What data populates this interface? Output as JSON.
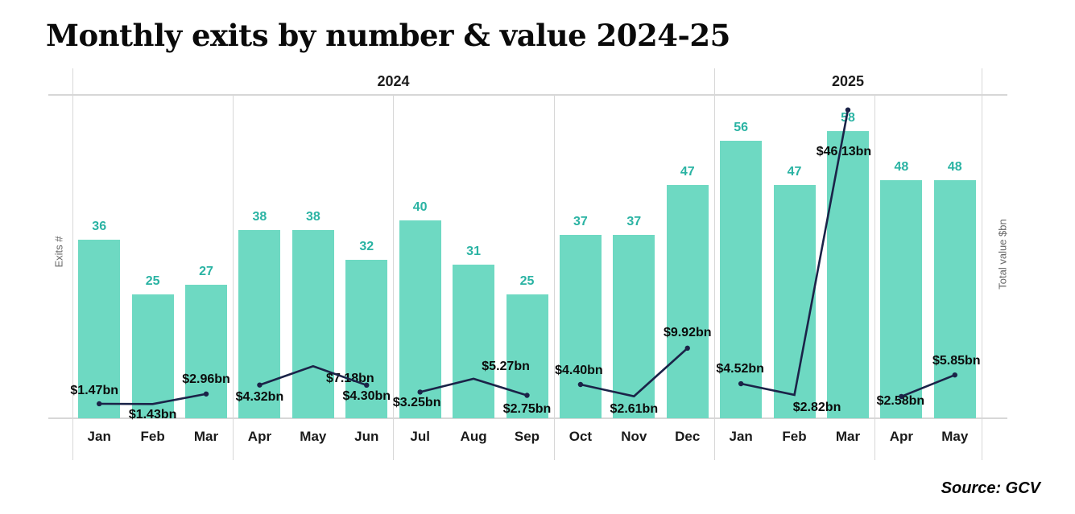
{
  "chart_data": {
    "type": "bar+line",
    "title": "Monthly exits by number & value 2024-25",
    "source": "Source: GCV",
    "categories": [
      "Jan",
      "Feb",
      "Mar",
      "Apr",
      "May",
      "Jun",
      "Jul",
      "Aug",
      "Sep",
      "Oct",
      "Nov",
      "Dec",
      "Jan",
      "Feb",
      "Mar",
      "Apr",
      "May"
    ],
    "year_groups": [
      {
        "label": "2024",
        "start": 0,
        "count": 12
      },
      {
        "label": "2025",
        "start": 12,
        "count": 5
      }
    ],
    "pane_size": 3,
    "axes": {
      "left_label": "Exits #",
      "right_label": "Total value $bn",
      "left_range": [
        0,
        65
      ],
      "right_range": [
        0,
        49
      ]
    },
    "series": [
      {
        "name": "Exits #",
        "type": "bar",
        "axis": "left",
        "values": [
          36,
          25,
          27,
          38,
          38,
          32,
          40,
          31,
          25,
          37,
          37,
          47,
          56,
          47,
          58,
          48,
          48
        ]
      },
      {
        "name": "Total value $bn",
        "type": "line",
        "axis": "right",
        "values": [
          1.47,
          1.43,
          2.96,
          4.32,
          7.18,
          4.3,
          3.25,
          5.27,
          2.75,
          4.4,
          2.61,
          9.92,
          4.52,
          2.82,
          46.13,
          2.58,
          5.85
        ],
        "labels": [
          "$1.47bn",
          "$1.43bn",
          "$2.96bn",
          "$4.32bn",
          "$7.18bn",
          "$4.30bn",
          "$3.25bn",
          "$5.27bn",
          "$2.75bn",
          "$4.40bn",
          "$2.61bn",
          "$9.92bn",
          "$4.52bn",
          "$2.82bn",
          "$46.13bn",
          "$2.58bn",
          "$5.85bn"
        ]
      }
    ],
    "label_placement": [
      {
        "pos": "above",
        "dx": -6,
        "gap": 8
      },
      {
        "pos": "below",
        "dx": 0,
        "gap": 5
      },
      {
        "pos": "above",
        "dx": 0,
        "gap": 10
      },
      {
        "pos": "below",
        "dx": 0,
        "gap": 6
      },
      {
        "pos": "below",
        "dx": 46,
        "gap": 7
      },
      {
        "pos": "below",
        "dx": 0,
        "gap": 5
      },
      {
        "pos": "below",
        "dx": -4,
        "gap": 5
      },
      {
        "pos": "above",
        "dx": 40,
        "gap": 7
      },
      {
        "pos": "below",
        "dx": 0,
        "gap": 8
      },
      {
        "pos": "above",
        "dx": -2,
        "gap": 9
      },
      {
        "pos": "below",
        "dx": 0,
        "gap": 7
      },
      {
        "pos": "above",
        "dx": 0,
        "gap": 11
      },
      {
        "pos": "above",
        "dx": -1,
        "gap": 10
      },
      {
        "pos": "below",
        "dx": 28,
        "gap": 7
      },
      {
        "pos": "below",
        "dx": -5,
        "gap": 43
      },
      {
        "pos": "below",
        "dx": -1,
        "gap": -3
      },
      {
        "pos": "above",
        "dx": 2,
        "gap": 9
      }
    ],
    "grid": "quarter-pane separators, header rule, baseline rule",
    "legend": "none",
    "colors": {
      "bar": "#6ed9c2",
      "bar_value_label": "#2ab3a3",
      "line": "#1b2348",
      "value_label": "#0b0b0b",
      "grid_line": "#d7d7d7",
      "axis_text": "#666666",
      "month_label": "#1a1a1a",
      "year_label": "#1c1c1c"
    }
  }
}
